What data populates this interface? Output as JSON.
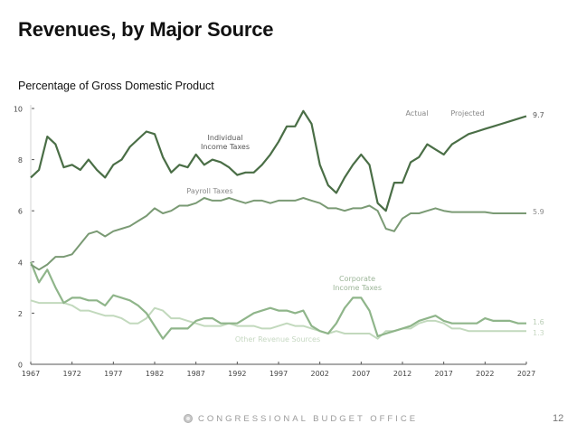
{
  "slide": {
    "title": "Revenues, by Major Source",
    "subtitle": "Percentage of Gross Domestic Product",
    "footer_org": "CONGRESSIONAL BUDGET OFFICE",
    "page_number": "12",
    "logo_icon": "cbo-seal-icon"
  },
  "chart_data": {
    "type": "line",
    "title": "Revenues, by Major Source",
    "subtitle": "Percentage of Gross Domestic Product",
    "xlabel": "",
    "ylabel": "Percentage of Gross Domestic Product",
    "xlim": [
      1967,
      2027
    ],
    "ylim": [
      0,
      10
    ],
    "x_ticks": [
      1967,
      1972,
      1977,
      1982,
      1987,
      1992,
      1997,
      2002,
      2007,
      2012,
      2017,
      2022,
      2027
    ],
    "x_tick_labels": [
      "1967",
      "1972",
      "1977",
      "1982",
      "1987",
      "1992",
      "1997",
      "2002",
      "2007",
      "2012",
      "2017",
      "2022",
      "2027"
    ],
    "y_ticks": [
      0,
      2,
      4,
      6,
      8,
      10
    ],
    "y_tick_labels": [
      "0",
      "2",
      "4",
      "6",
      "8",
      "10"
    ],
    "grid": false,
    "period_labels": {
      "actual": "Actual",
      "projected": "Projected",
      "actual_end_year": 2016
    },
    "series": [
      {
        "name": "Individual Income Taxes",
        "label": [
          "Individual",
          "Income Taxes"
        ],
        "color": "#4a6e46",
        "end_label": "9.7",
        "x_start": 1967,
        "values": [
          7.3,
          7.6,
          8.9,
          8.6,
          7.7,
          7.8,
          7.6,
          8.0,
          7.6,
          7.3,
          7.8,
          8.0,
          8.5,
          8.8,
          9.1,
          9.0,
          8.1,
          7.5,
          7.8,
          7.7,
          8.2,
          7.8,
          8.0,
          7.9,
          7.7,
          7.4,
          7.5,
          7.5,
          7.8,
          8.2,
          8.7,
          9.3,
          9.3,
          9.9,
          9.4,
          7.8,
          7.0,
          6.7,
          7.3,
          7.8,
          8.2,
          7.8,
          6.3,
          6.0,
          7.1,
          7.1,
          7.9,
          8.1,
          8.6,
          8.4,
          8.2,
          8.6,
          8.8,
          9.0,
          9.1,
          9.2,
          9.3,
          9.4,
          9.5,
          9.6,
          9.7
        ]
      },
      {
        "name": "Payroll Taxes",
        "label": [
          "Payroll Taxes"
        ],
        "color": "#7a9a74",
        "end_label": "5.9",
        "x_start": 1967,
        "values": [
          3.9,
          3.7,
          3.9,
          4.2,
          4.2,
          4.3,
          4.7,
          5.1,
          5.2,
          5.0,
          5.2,
          5.3,
          5.4,
          5.6,
          5.8,
          6.1,
          5.9,
          6.0,
          6.2,
          6.2,
          6.3,
          6.5,
          6.4,
          6.4,
          6.5,
          6.4,
          6.3,
          6.4,
          6.4,
          6.3,
          6.4,
          6.4,
          6.4,
          6.5,
          6.4,
          6.3,
          6.1,
          6.1,
          6.0,
          6.1,
          6.1,
          6.2,
          6.0,
          5.3,
          5.2,
          5.7,
          5.9,
          5.9,
          6.0,
          6.1,
          6.0,
          5.95,
          5.95,
          5.95,
          5.95,
          5.95,
          5.9,
          5.9,
          5.9,
          5.9,
          5.9
        ]
      },
      {
        "name": "Corporate Income Taxes",
        "label": [
          "Corporate",
          "Income Taxes"
        ],
        "color": "#8fb58a",
        "end_label": "1.6",
        "x_start": 1967,
        "values": [
          4.0,
          3.2,
          3.7,
          3.0,
          2.4,
          2.6,
          2.6,
          2.5,
          2.5,
          2.3,
          2.7,
          2.6,
          2.5,
          2.3,
          2.0,
          1.5,
          1.0,
          1.4,
          1.4,
          1.4,
          1.7,
          1.8,
          1.8,
          1.6,
          1.6,
          1.6,
          1.8,
          2.0,
          2.1,
          2.2,
          2.1,
          2.1,
          2.0,
          2.1,
          1.5,
          1.3,
          1.2,
          1.6,
          2.2,
          2.6,
          2.6,
          2.1,
          1.1,
          1.2,
          1.3,
          1.4,
          1.5,
          1.7,
          1.8,
          1.9,
          1.7,
          1.6,
          1.6,
          1.6,
          1.6,
          1.8,
          1.7,
          1.7,
          1.7,
          1.6,
          1.6
        ]
      },
      {
        "name": "Other Revenue Sources",
        "label": [
          "Other Revenue Sources"
        ],
        "color": "#c2d9bd",
        "end_label": "1.3",
        "x_start": 1967,
        "values": [
          2.5,
          2.4,
          2.4,
          2.4,
          2.4,
          2.3,
          2.1,
          2.1,
          2.0,
          1.9,
          1.9,
          1.8,
          1.6,
          1.6,
          1.8,
          2.2,
          2.1,
          1.8,
          1.8,
          1.7,
          1.6,
          1.5,
          1.5,
          1.5,
          1.6,
          1.5,
          1.5,
          1.5,
          1.4,
          1.4,
          1.5,
          1.6,
          1.5,
          1.5,
          1.4,
          1.3,
          1.2,
          1.3,
          1.2,
          1.2,
          1.2,
          1.2,
          1.0,
          1.3,
          1.3,
          1.4,
          1.4,
          1.6,
          1.7,
          1.7,
          1.6,
          1.4,
          1.4,
          1.3,
          1.3,
          1.3,
          1.3,
          1.3,
          1.3,
          1.3,
          1.3
        ]
      }
    ]
  }
}
